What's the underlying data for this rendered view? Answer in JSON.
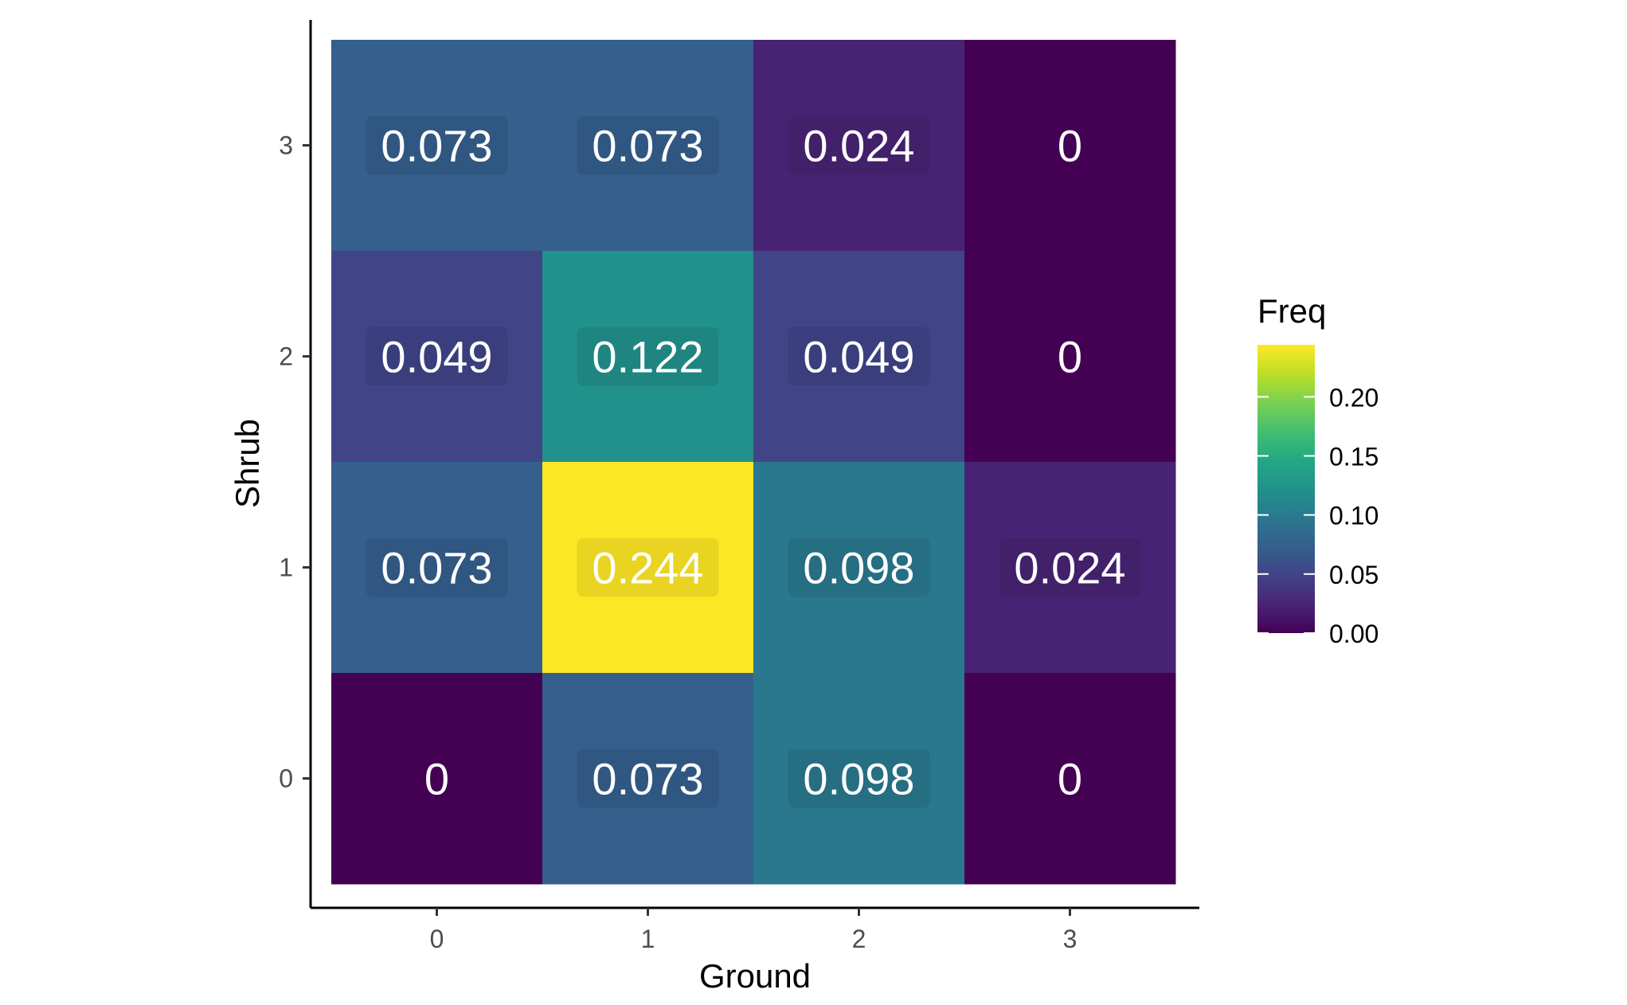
{
  "chart_data": {
    "type": "heatmap",
    "xlabel": "Ground",
    "ylabel": "Shrub",
    "x_categories": [
      "0",
      "1",
      "2",
      "3"
    ],
    "y_categories": [
      "0",
      "1",
      "2",
      "3"
    ],
    "cells": [
      {
        "x": "0",
        "y": "3",
        "value": 0.073,
        "label": "0.073"
      },
      {
        "x": "1",
        "y": "3",
        "value": 0.073,
        "label": "0.073"
      },
      {
        "x": "2",
        "y": "3",
        "value": 0.024,
        "label": "0.024"
      },
      {
        "x": "3",
        "y": "3",
        "value": 0,
        "label": "0"
      },
      {
        "x": "0",
        "y": "2",
        "value": 0.049,
        "label": "0.049"
      },
      {
        "x": "1",
        "y": "2",
        "value": 0.122,
        "label": "0.122"
      },
      {
        "x": "2",
        "y": "2",
        "value": 0.049,
        "label": "0.049"
      },
      {
        "x": "3",
        "y": "2",
        "value": 0,
        "label": "0"
      },
      {
        "x": "0",
        "y": "1",
        "value": 0.073,
        "label": "0.073"
      },
      {
        "x": "1",
        "y": "1",
        "value": 0.244,
        "label": "0.244"
      },
      {
        "x": "2",
        "y": "1",
        "value": 0.098,
        "label": "0.098"
      },
      {
        "x": "3",
        "y": "1",
        "value": 0.024,
        "label": "0.024"
      },
      {
        "x": "0",
        "y": "0",
        "value": 0,
        "label": "0"
      },
      {
        "x": "1",
        "y": "0",
        "value": 0.073,
        "label": "0.073"
      },
      {
        "x": "2",
        "y": "0",
        "value": 0.098,
        "label": "0.098"
      },
      {
        "x": "3",
        "y": "0",
        "value": 0,
        "label": "0"
      }
    ],
    "colorbar": {
      "title": "Freq",
      "range": [
        0,
        0.244
      ],
      "ticks": [
        {
          "value": 0.0,
          "label": "0.00"
        },
        {
          "value": 0.05,
          "label": "0.05"
        },
        {
          "value": 0.1,
          "label": "0.10"
        },
        {
          "value": 0.15,
          "label": "0.15"
        },
        {
          "value": 0.2,
          "label": "0.20"
        }
      ],
      "palette": "viridis"
    },
    "grid": false,
    "legend_position": "right"
  }
}
